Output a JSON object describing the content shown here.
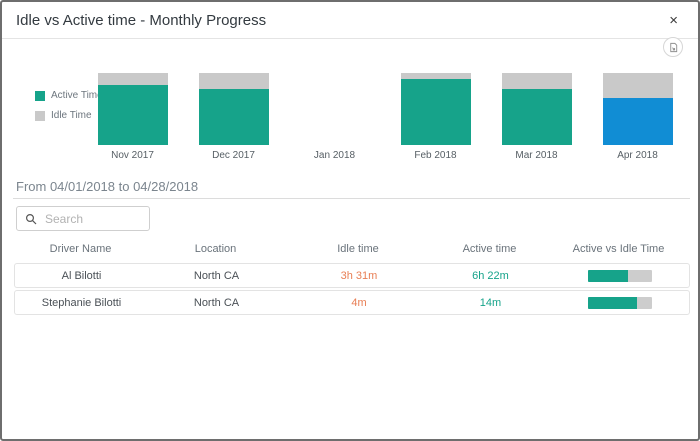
{
  "modal": {
    "title": "Idle vs Active time - Monthly Progress",
    "close_label": "×"
  },
  "chart_data": {
    "type": "bar",
    "stacked": true,
    "unit": "percent",
    "categories": [
      "Nov 2017",
      "Dec 2017",
      "Jan 2018",
      "Feb 2018",
      "Mar 2018",
      "Apr 2018"
    ],
    "series": [
      {
        "name": "Active Time",
        "color": "#16a38a",
        "values": [
          83,
          78,
          0,
          92,
          78,
          65
        ]
      },
      {
        "name": "Idle Time",
        "color": "#c9c9c9",
        "values": [
          17,
          22,
          0,
          8,
          22,
          35
        ]
      }
    ],
    "selected_category": "Apr 2018",
    "selected_color": "#118dd4",
    "legend_position": "left",
    "ylim": [
      0,
      100
    ]
  },
  "period": {
    "label": "From 04/01/2018 to 04/28/2018"
  },
  "search": {
    "placeholder": "Search"
  },
  "table": {
    "columns": [
      "Driver Name",
      "Location",
      "Idle time",
      "Active time",
      "Active vs Idle Time"
    ],
    "rows": [
      {
        "driver_name": "Al Bilotti",
        "location": "North CA",
        "idle_time": "3h 31m",
        "active_time": "6h 22m",
        "active_pct": 64
      },
      {
        "driver_name": "Stephanie Bilotti",
        "location": "North CA",
        "idle_time": "4m",
        "active_time": "14m",
        "active_pct": 78
      }
    ]
  },
  "colors": {
    "active_text": "#16a38a",
    "idle_text": "#e87e54",
    "progress_track": "#cdcdcd"
  }
}
